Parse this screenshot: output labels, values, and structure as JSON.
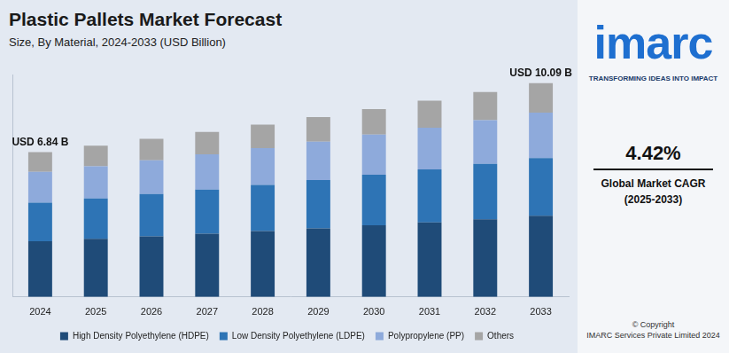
{
  "chart_data": {
    "type": "bar",
    "title": "Plastic Pallets Market Forecast",
    "subtitle": "Size, By Material, 2024-2033 (USD Billion)",
    "categories": [
      "2024",
      "2025",
      "2026",
      "2027",
      "2028",
      "2029",
      "2030",
      "2031",
      "2032",
      "2033"
    ],
    "series": [
      {
        "name": "High Density Polyethylene (HDPE)",
        "color": "#1f4b78",
        "values": [
          2.63,
          2.74,
          2.86,
          2.98,
          3.11,
          3.24,
          3.38,
          3.52,
          3.67,
          3.83
        ]
      },
      {
        "name": "Low Density Polyethylene (LDPE)",
        "color": "#2e74b5",
        "values": [
          1.82,
          1.91,
          2.0,
          2.09,
          2.18,
          2.28,
          2.39,
          2.5,
          2.61,
          2.72
        ]
      },
      {
        "name": "Polypropylene (PP)",
        "color": "#8eaadb",
        "values": [
          1.46,
          1.52,
          1.59,
          1.66,
          1.73,
          1.81,
          1.89,
          1.97,
          2.06,
          2.15
        ]
      },
      {
        "name": "Others",
        "color": "#a5a5a5",
        "values": [
          0.93,
          0.97,
          1.01,
          1.06,
          1.11,
          1.16,
          1.21,
          1.27,
          1.33,
          1.39
        ]
      }
    ],
    "stacked": true,
    "ylim": [
      0,
      10.5
    ],
    "grid": false,
    "tick_labels": "x",
    "legend": "bottom",
    "annotations": [
      {
        "text": "USD 6.84 B",
        "category": "2024"
      },
      {
        "text": "USD 10.09 B",
        "category": "2033"
      }
    ]
  },
  "side_panel": {
    "logo": "imarc",
    "tagline": "TRANSFORMING IDEAS INTO IMPACT",
    "cagr": "4.42%",
    "cagr_label": [
      "Global Market CAGR",
      "(2025-2033)"
    ],
    "copyright": [
      "© Copyright",
      "IMARC Services Private Limited 2024"
    ]
  }
}
